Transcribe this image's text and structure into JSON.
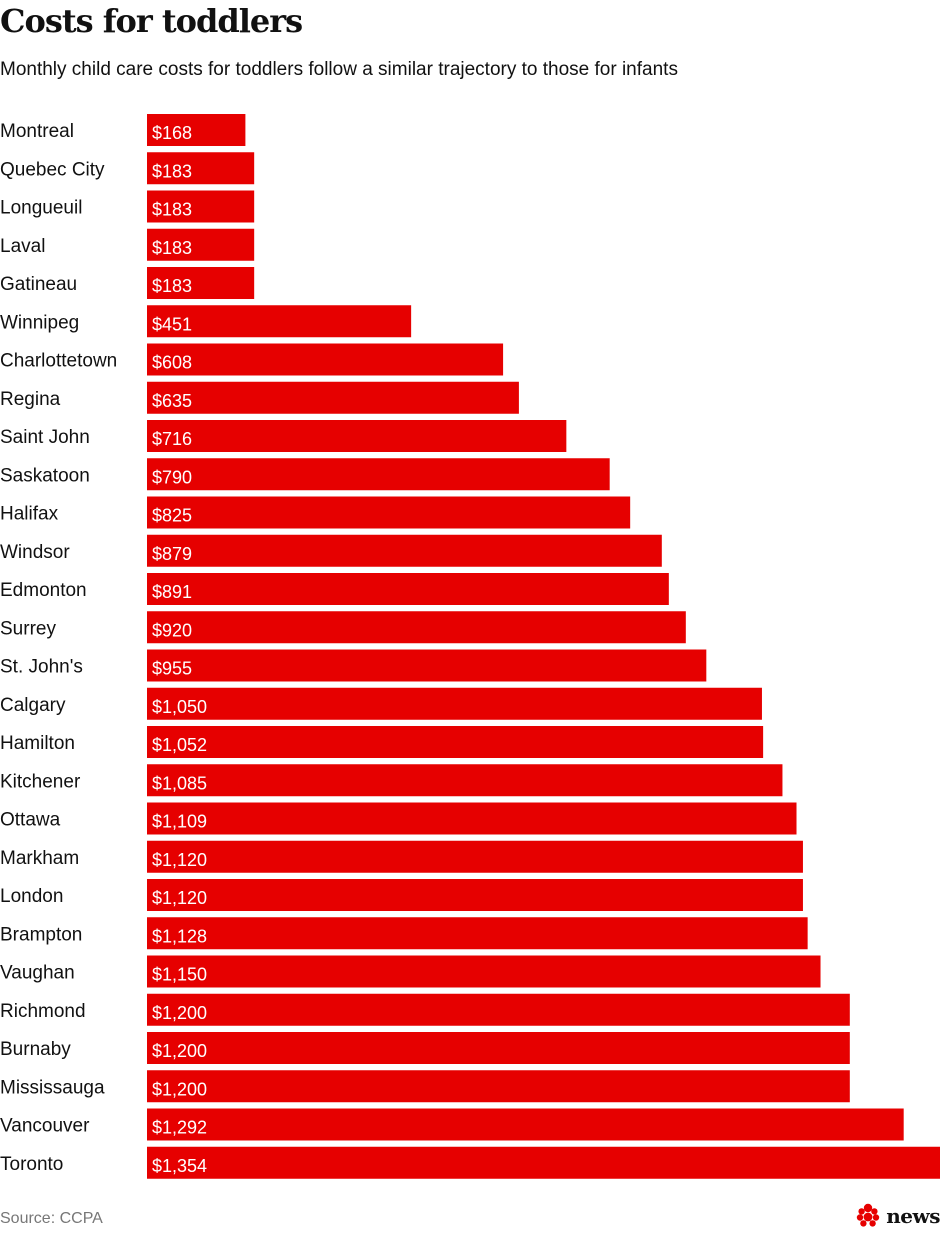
{
  "title": "Costs for toddlers",
  "subtitle": "Monthly child care costs for toddlers follow a similar trajectory to those for infants",
  "source": "Source: CCPA",
  "logo": {
    "text": "news",
    "icon": "cbc-gem-icon"
  },
  "colors": {
    "bar": "#e60000",
    "bar_label": "#ffffff",
    "category_label": "#111111"
  },
  "chart_data": {
    "type": "bar",
    "orientation": "horizontal",
    "categories": [
      "Montreal",
      "Quebec City",
      "Longueuil",
      "Laval",
      "Gatineau",
      "Winnipeg",
      "Charlottetown",
      "Regina",
      "Saint John",
      "Saskatoon",
      "Halifax",
      "Windsor",
      "Edmonton",
      "Surrey",
      "St. John's",
      "Calgary",
      "Hamilton",
      "Kitchener",
      "Ottawa",
      "Markham",
      "London",
      "Brampton",
      "Vaughan",
      "Richmond",
      "Burnaby",
      "Mississauga",
      "Vancouver",
      "Toronto"
    ],
    "values": [
      168,
      183,
      183,
      183,
      183,
      451,
      608,
      635,
      716,
      790,
      825,
      879,
      891,
      920,
      955,
      1050,
      1052,
      1085,
      1109,
      1120,
      1120,
      1128,
      1150,
      1200,
      1200,
      1200,
      1292,
      1354
    ],
    "value_labels": [
      "$168",
      "$183",
      "$183",
      "$183",
      "$183",
      "$451",
      "$608",
      "$635",
      "$716",
      "$790",
      "$825",
      "$879",
      "$891",
      "$920",
      "$955",
      "$1,050",
      "$1,052",
      "$1,085",
      "$1,109",
      "$1,120",
      "$1,120",
      "$1,128",
      "$1,150",
      "$1,200",
      "$1,200",
      "$1,200",
      "$1,292",
      "$1,354"
    ],
    "xlim": [
      0,
      1354
    ],
    "grid": false,
    "legend": "none"
  }
}
